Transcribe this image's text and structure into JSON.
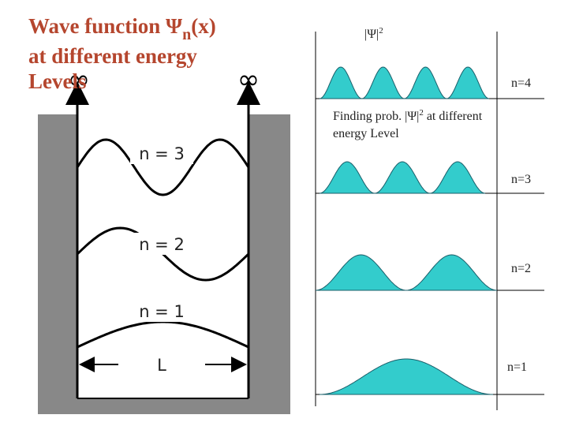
{
  "title": {
    "line1": "Wave function Ψ",
    "subscript": "n",
    "line1_end": "(x)",
    "line2": "at different energy",
    "line3": "Levels"
  },
  "left_diagram": {
    "infinity_left": "∞",
    "infinity_right": "∞",
    "levels": [
      "n = 3",
      "n = 2",
      "n = 1"
    ],
    "width_label": "L"
  },
  "right_diagram": {
    "axis_label": "|Ψ|",
    "axis_label_sup": "2",
    "caption_line1": "Finding prob. |Ψ|",
    "caption_sup": "2",
    "caption_line1_end": " at different",
    "caption_line2": "energy  Level",
    "levels": [
      "n=4",
      "n=3",
      "n=2",
      "n=1"
    ]
  }
}
